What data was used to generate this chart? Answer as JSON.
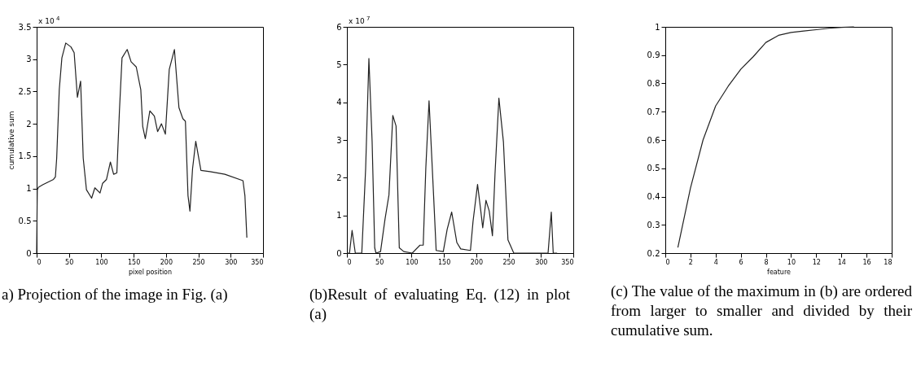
{
  "chart_data": [
    {
      "type": "line",
      "xlabel": "pixel position",
      "ylabel": "cumulative sum",
      "annotations": [
        "x 10$^{4}$",
        "a) Projection of the image in Fig. (a)"
      ],
      "xlim": [
        0,
        350
      ],
      "ylim": [
        0,
        3.5
      ],
      "xticks": [
        0,
        50,
        100,
        150,
        200,
        250,
        300,
        350
      ],
      "yticks": [
        0,
        0.5,
        1,
        1.5,
        2,
        2.5,
        3,
        3.5
      ],
      "color": "#222222",
      "x": [
        0,
        1,
        3,
        10,
        26,
        29,
        31,
        35,
        39,
        45,
        53,
        58,
        63,
        68,
        72,
        77,
        85,
        90,
        98,
        102,
        108,
        114,
        119,
        124,
        128,
        132,
        140,
        146,
        154,
        161,
        164,
        168,
        175,
        182,
        187,
        193,
        199,
        205,
        213,
        220,
        226,
        230,
        234,
        237,
        241,
        246,
        254,
        268,
        291,
        319,
        322,
        325
      ],
      "values": [
        0,
        0.98,
        1.02,
        1.06,
        1.14,
        1.18,
        1.47,
        2.53,
        3.02,
        3.25,
        3.19,
        3.1,
        2.41,
        2.66,
        1.47,
        0.98,
        0.85,
        1.01,
        0.93,
        1.08,
        1.14,
        1.41,
        1.22,
        1.24,
        2.2,
        3.02,
        3.15,
        2.96,
        2.88,
        2.53,
        1.96,
        1.77,
        2.2,
        2.12,
        1.88,
        2.0,
        1.84,
        2.84,
        3.15,
        2.25,
        2.08,
        2.04,
        0.89,
        0.65,
        1.3,
        1.73,
        1.28,
        1.26,
        1.22,
        1.12,
        0.89,
        0.24
      ]
    },
    {
      "type": "line",
      "annotations": [
        "x 10$^{7}$",
        "(b)Result of evaluating Eq. (12) in plot (a)"
      ],
      "xlim": [
        0,
        350
      ],
      "ylim": [
        0,
        6
      ],
      "xticks": [
        0,
        50,
        100,
        150,
        200,
        250,
        300,
        350
      ],
      "yticks": [
        0,
        1,
        2,
        3,
        4,
        5,
        6
      ],
      "color": "#222222",
      "x": [
        0,
        4,
        8,
        13,
        23,
        29,
        34,
        39,
        43,
        45,
        52,
        59,
        65,
        71,
        76,
        81,
        88,
        101,
        113,
        118,
        122,
        127,
        134,
        138,
        149,
        155,
        162,
        170,
        176,
        191,
        195,
        202,
        207,
        210,
        215,
        220,
        225,
        229,
        235,
        242,
        249,
        258,
        311,
        316,
        319,
        325
      ],
      "values": [
        0,
        0,
        0.6,
        0,
        0,
        2.25,
        5.16,
        2.95,
        0.14,
        0,
        0.04,
        0.91,
        1.54,
        3.65,
        3.37,
        0.14,
        0.04,
        0,
        0.21,
        0.21,
        2.25,
        4.04,
        1.54,
        0.07,
        0.04,
        0.63,
        1.09,
        0.28,
        0.11,
        0.07,
        0.84,
        1.82,
        1.12,
        0.67,
        1.4,
        1.12,
        0.46,
        2.11,
        4.11,
        2.95,
        0.35,
        0,
        0,
        1.09,
        0,
        0
      ]
    },
    {
      "type": "line",
      "xlabel": "feature",
      "annotations": [
        "(c) The value of the maximum in (b) are ordered from larger to smaller and divided by their cumulative sum."
      ],
      "xlim": [
        0,
        18
      ],
      "ylim": [
        0.2,
        1
      ],
      "xticks": [
        0,
        2,
        4,
        6,
        8,
        10,
        12,
        14,
        16,
        18
      ],
      "yticks": [
        0.2,
        0.3,
        0.4,
        0.5,
        0.6,
        0.7,
        0.8,
        0.9,
        1
      ],
      "color": "#222222",
      "x": [
        1,
        2,
        3,
        4,
        5,
        6,
        7,
        8,
        9,
        10,
        11,
        12,
        13,
        14,
        15
      ],
      "values": [
        0.22,
        0.43,
        0.6,
        0.72,
        0.79,
        0.85,
        0.895,
        0.945,
        0.97,
        0.98,
        0.985,
        0.99,
        0.995,
        0.998,
        1.0
      ]
    }
  ]
}
